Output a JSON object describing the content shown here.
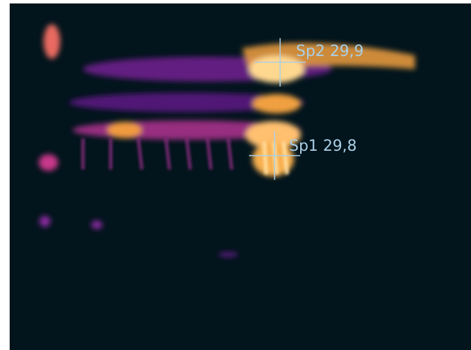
{
  "spots": [
    {
      "name": "Sp2",
      "value": "29,9"
    },
    {
      "name": "Sp1",
      "value": "29,8"
    }
  ]
}
